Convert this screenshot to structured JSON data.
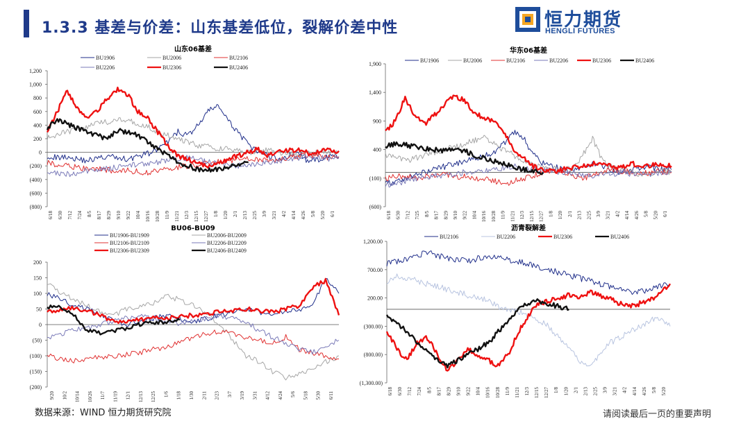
{
  "header": {
    "title": "1.3.3 基差与价差：山东基差低位，裂解价差中性"
  },
  "logo": {
    "name_cn": "恒力期货",
    "name_en": "HENGLI FUTURES",
    "mark_color": "#1e4d9b",
    "accent_color": "#f5a623"
  },
  "footer": {
    "source": "数据来源：WIND 恒力期货研究院",
    "disclaimer": "请阅读最后一页的重要声明"
  },
  "chart_data": [
    {
      "id": "shandong",
      "type": "line",
      "title": "山东06基差",
      "ylim": [
        -800,
        1200
      ],
      "y_ticks": [
        1200,
        1000,
        800,
        600,
        400,
        200,
        0,
        -200,
        -400,
        -600,
        -800
      ],
      "y_tick_labels": [
        "1,200",
        "1,000",
        "800",
        "600",
        "400",
        "200",
        "0",
        "(200)",
        "(400)",
        "(600)",
        "(800)"
      ],
      "x_tick_labels": [
        "6/18",
        "6/30",
        "7/12",
        "7/24",
        "8/5",
        "8/17",
        "8/29",
        "9/10",
        "9/22",
        "10/4",
        "10/16",
        "10/28",
        "11/9",
        "11/21",
        "12/3",
        "12/15",
        "12/27",
        "1/8",
        "1/20",
        "2/1",
        "2/13",
        "2/25",
        "3/9",
        "3/21",
        "4/2",
        "4/14",
        "4/26",
        "5/8",
        "5/20",
        "6/1"
      ],
      "legend": {
        "columns": 3
      },
      "series": [
        {
          "name": "BU1906",
          "color": "#1f2e8a",
          "width": 1,
          "values": [
            -50,
            -80,
            -60,
            -100,
            -120,
            -90,
            -60,
            -80,
            -100,
            -60,
            -20,
            40,
            150,
            300,
            250,
            400,
            600,
            700,
            450,
            300,
            100,
            0,
            -50,
            -100,
            -50,
            0,
            -150,
            -100,
            -50,
            -80
          ]
        },
        {
          "name": "BU2006",
          "color": "#a6a6a6",
          "width": 1,
          "values": [
            200,
            260,
            300,
            350,
            380,
            420,
            450,
            500,
            480,
            420,
            380,
            300,
            250,
            200,
            150,
            100,
            80,
            60,
            40,
            20,
            0,
            20,
            40,
            0,
            -20,
            -40,
            -20,
            0,
            20,
            0
          ]
        },
        {
          "name": "BU2106",
          "color": "#e03030",
          "width": 1,
          "values": [
            -150,
            -180,
            -200,
            -220,
            -240,
            -250,
            -260,
            -280,
            -270,
            -280,
            -300,
            -280,
            -250,
            -220,
            -200,
            -180,
            -160,
            -140,
            -120,
            -100,
            -80,
            -100,
            -120,
            -100,
            -80,
            -60,
            -40,
            -60,
            -80,
            -60
          ]
        },
        {
          "name": "BU2206",
          "color": "#7a7ab8",
          "width": 1,
          "values": [
            -280,
            -300,
            -320,
            -300,
            -280,
            -260,
            -240,
            -220,
            -200,
            -180,
            -160,
            -140,
            -120,
            -100,
            -80,
            -100,
            -140,
            -160,
            -180,
            -200,
            -180,
            -160,
            -140,
            -120,
            -100,
            -80,
            -60,
            -80,
            -100,
            -80
          ]
        },
        {
          "name": "BU2306",
          "color": "#ee1111",
          "width": 2.4,
          "values": [
            300,
            600,
            900,
            650,
            500,
            600,
            800,
            920,
            850,
            600,
            500,
            300,
            100,
            -50,
            -100,
            -150,
            -200,
            -180,
            -100,
            -50,
            0,
            50,
            -50,
            0,
            20,
            50,
            -20,
            10,
            30,
            20
          ]
        },
        {
          "name": "BU2406",
          "color": "#111111",
          "width": 2.4,
          "values": [
            350,
            480,
            420,
            350,
            300,
            250,
            200,
            320,
            300,
            250,
            150,
            50,
            -50,
            -150,
            -200,
            -250,
            -270,
            -250,
            -220,
            -180,
            -150,
            null,
            null,
            null,
            null,
            null,
            null,
            null,
            null,
            null
          ]
        }
      ]
    },
    {
      "id": "huadong",
      "type": "line",
      "title": "华东06基差",
      "ylim": [
        -600,
        1900
      ],
      "y_ticks": [
        1900,
        1400,
        900,
        400,
        -100,
        -600
      ],
      "y_tick_labels": [
        "1,900",
        "1,400",
        "900",
        "400",
        "(100)",
        "(600)"
      ],
      "x_tick_labels": [
        "6/18",
        "6/30",
        "7/12",
        "7/25",
        "8/5",
        "8/17",
        "8/29",
        "9/10",
        "9/22",
        "10/4",
        "10/16",
        "10/28",
        "11/9",
        "11/21",
        "12/3",
        "12/15",
        "12/27",
        "1/8",
        "1/20",
        "2/1",
        "2/13",
        "2/25",
        "3/9",
        "3/21",
        "4/2",
        "4/14",
        "4/26",
        "5/8",
        "5/20",
        "6/1"
      ],
      "legend": {
        "columns": 6
      },
      "series": [
        {
          "name": "BU1906",
          "color": "#1f2e8a",
          "width": 1,
          "values": [
            -150,
            -200,
            -100,
            -50,
            0,
            50,
            100,
            150,
            200,
            250,
            300,
            350,
            500,
            700,
            600,
            300,
            150,
            100,
            50,
            0,
            100,
            150,
            100,
            50,
            0,
            50,
            100,
            80,
            60,
            50
          ]
        },
        {
          "name": "BU2006",
          "color": "#a6a6a6",
          "width": 1,
          "values": [
            300,
            280,
            200,
            250,
            300,
            350,
            400,
            450,
            500,
            550,
            600,
            500,
            400,
            300,
            200,
            150,
            100,
            80,
            60,
            50,
            300,
            600,
            200,
            100,
            50,
            0,
            -50,
            0,
            50,
            0
          ]
        },
        {
          "name": "BU2106",
          "color": "#e03030",
          "width": 1,
          "values": [
            -100,
            -80,
            -60,
            -100,
            -80,
            -60,
            -40,
            -60,
            -80,
            -100,
            -120,
            -150,
            -200,
            -150,
            -100,
            -50,
            0,
            50,
            0,
            -50,
            -100,
            -50,
            0,
            50,
            20,
            0,
            -20,
            0,
            20,
            0
          ]
        },
        {
          "name": "BU2206",
          "color": "#7a7ab8",
          "width": 1,
          "values": [
            -250,
            -200,
            -150,
            -100,
            -80,
            -60,
            -40,
            -20,
            0,
            20,
            40,
            60,
            80,
            100,
            80,
            60,
            40,
            20,
            0,
            -20,
            -40,
            -60,
            -40,
            -20,
            0,
            -20,
            -40,
            -20,
            0,
            20
          ]
        },
        {
          "name": "BU2306",
          "color": "#ee1111",
          "width": 2.4,
          "values": [
            700,
            900,
            1300,
            1000,
            850,
            1000,
            1200,
            1350,
            1250,
            1050,
            950,
            900,
            700,
            400,
            250,
            100,
            50,
            0,
            50,
            80,
            100,
            150,
            120,
            100,
            80,
            150,
            100,
            120,
            140,
            110
          ]
        },
        {
          "name": "BU2406",
          "color": "#111111",
          "width": 2.4,
          "values": [
            450,
            500,
            480,
            450,
            420,
            400,
            380,
            420,
            380,
            300,
            250,
            200,
            150,
            100,
            50,
            20,
            0,
            null,
            null,
            null,
            null,
            null,
            null,
            null,
            null,
            null,
            null,
            null,
            null,
            null
          ]
        }
      ]
    },
    {
      "id": "spread0609",
      "type": "line",
      "title": "BU06-BU09",
      "ylim": [
        -200,
        200
      ],
      "y_ticks": [
        200,
        150,
        100,
        50,
        0,
        -50,
        -100,
        -150,
        -200
      ],
      "y_tick_labels": [
        "200",
        "150",
        "100",
        "50",
        "0",
        "(50)",
        "(100)",
        "(150)",
        "(200)"
      ],
      "x_tick_labels": [
        "9/20",
        "10/2",
        "10/14",
        "10/26",
        "11/7",
        "11/19",
        "12/1",
        "12/13",
        "12/25",
        "1/6",
        "1/18",
        "1/30",
        "2/11",
        "2/23",
        "3/7",
        "3/19",
        "3/31",
        "4/12",
        "4/24",
        "5/6",
        "5/18",
        "5/30",
        "6/11"
      ],
      "legend": {
        "columns": 2
      },
      "series": [
        {
          "name": "BU1906-BU1909",
          "color": "#1f2e8a",
          "width": 1,
          "values": [
            100,
            80,
            60,
            50,
            30,
            10,
            0,
            10,
            20,
            30,
            20,
            10,
            20,
            30,
            40,
            50,
            40,
            30,
            40,
            50,
            60,
            150,
            100
          ]
        },
        {
          "name": "BU2006-BU2009",
          "color": "#a6a6a6",
          "width": 1,
          "values": [
            130,
            100,
            80,
            60,
            40,
            30,
            50,
            60,
            70,
            90,
            80,
            60,
            40,
            0,
            -50,
            -100,
            -120,
            -150,
            -170,
            -160,
            -140,
            -120,
            -100
          ]
        },
        {
          "name": "BU2106-BU2109",
          "color": "#e03030",
          "width": 1,
          "values": [
            -100,
            -110,
            -115,
            -110,
            -105,
            -100,
            -95,
            -90,
            -80,
            -70,
            -60,
            -40,
            -30,
            -20,
            -30,
            -40,
            -50,
            -60,
            -40,
            -80,
            -90,
            -100,
            -110
          ]
        },
        {
          "name": "BU2206-BU2209",
          "color": "#7a7ab8",
          "width": 1,
          "values": [
            -40,
            -30,
            -20,
            -10,
            0,
            10,
            20,
            30,
            20,
            10,
            0,
            10,
            20,
            30,
            20,
            10,
            -20,
            -40,
            -60,
            -80,
            -90,
            -70,
            -50
          ]
        },
        {
          "name": "BU2306-BU2309",
          "color": "#ee1111",
          "width": 2.4,
          "values": [
            40,
            50,
            55,
            45,
            30,
            10,
            10,
            15,
            20,
            20,
            25,
            30,
            35,
            40,
            45,
            50,
            45,
            40,
            50,
            60,
            120,
            140,
            30
          ]
        },
        {
          "name": "BU2406-BU2409",
          "color": "#111111",
          "width": 2.4,
          "values": [
            55,
            60,
            30,
            -20,
            -25,
            -20,
            -10,
            0,
            5,
            10,
            15,
            null,
            null,
            null,
            null,
            null,
            null,
            null,
            null,
            null,
            null,
            null,
            null
          ]
        }
      ]
    },
    {
      "id": "crack",
      "type": "line",
      "title": "沥青裂解差",
      "ylim": [
        -1300,
        1200
      ],
      "y_ticks": [
        1200,
        700,
        200,
        -300,
        -800,
        -1300
      ],
      "y_tick_labels": [
        "1,200.00",
        "700.00",
        "200.00",
        "(300.00)",
        "(800.00)",
        "(1,300.00)"
      ],
      "x_tick_labels": [
        "6/18",
        "6/30",
        "7/12",
        "7/24",
        "8/5",
        "8/17",
        "8/29",
        "9/10",
        "9/22",
        "10/4",
        "10/16",
        "10/28",
        "11/9",
        "11/21",
        "12/3",
        "12/15",
        "12/27",
        "1/8",
        "1/20",
        "2/1",
        "2/13",
        "2/25",
        "3/9",
        "3/21",
        "4/2",
        "4/14",
        "4/26",
        "5/8",
        "5/20"
      ],
      "legend": {
        "columns": 4
      },
      "series": [
        {
          "name": "BU2106",
          "color": "#1f2e8a",
          "width": 1,
          "values": [
            800,
            850,
            900,
            950,
            1000,
            950,
            900,
            880,
            850,
            900,
            950,
            920,
            880,
            850,
            800,
            750,
            700,
            650,
            600,
            550,
            500,
            450,
            400,
            350,
            300,
            300,
            350,
            400,
            450
          ]
        },
        {
          "name": "BU2206",
          "color": "#b8c4e0",
          "width": 1,
          "values": [
            500,
            600,
            550,
            500,
            450,
            400,
            350,
            300,
            250,
            200,
            150,
            50,
            0,
            -50,
            -100,
            -200,
            -300,
            -500,
            -700,
            -900,
            -1000,
            -800,
            -600,
            -500,
            -400,
            -300,
            -200,
            -150,
            -300
          ]
        },
        {
          "name": "BU2306",
          "color": "#ee1111",
          "width": 2.4,
          "values": [
            -400,
            -700,
            -900,
            -600,
            -500,
            -800,
            -1100,
            -900,
            -700,
            -800,
            -900,
            -1000,
            -800,
            -400,
            -100,
            100,
            150,
            200,
            250,
            200,
            300,
            250,
            200,
            100,
            50,
            100,
            150,
            300,
            450
          ]
        },
        {
          "name": "BU2406",
          "color": "#111111",
          "width": 2.4,
          "values": [
            -100,
            -250,
            -400,
            -600,
            -750,
            -900,
            -1000,
            -900,
            -800,
            -700,
            -600,
            -400,
            -200,
            0,
            100,
            150,
            100,
            50,
            0,
            null,
            null,
            null,
            null,
            null,
            null,
            null,
            null,
            null,
            null
          ]
        }
      ]
    }
  ]
}
